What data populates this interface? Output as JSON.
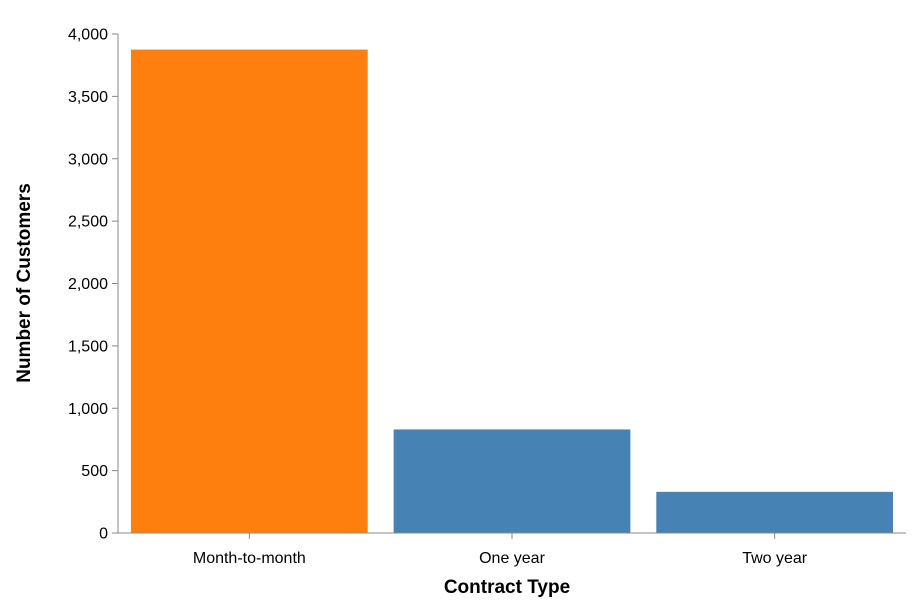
{
  "chart_data": {
    "type": "bar",
    "title": "",
    "xlabel": "Contract Type",
    "ylabel": "Number of Customers",
    "categories": [
      "Month-to-month",
      "One year",
      "Two year"
    ],
    "values": [
      3875,
      830,
      330
    ],
    "ylim": [
      0,
      4000
    ],
    "yticks": [
      0,
      500,
      1000,
      1500,
      2000,
      2500,
      3000,
      3500,
      4000
    ],
    "ytick_labels": [
      "0",
      "500",
      "1,000",
      "1,500",
      "2,000",
      "2,500",
      "3,000",
      "3,500",
      "4,000"
    ],
    "bar_colors": [
      "#ff7f0e",
      "#4682b4",
      "#4682b4"
    ],
    "grid": false,
    "legend": "none"
  }
}
